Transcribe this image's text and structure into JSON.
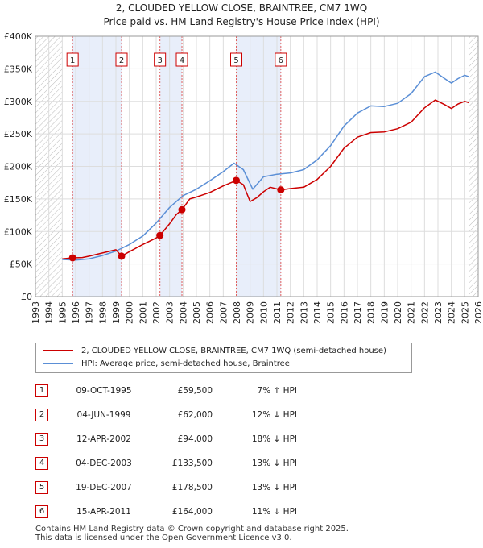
{
  "chart_data": {
    "type": "line",
    "title": "2, CLOUDED YELLOW CLOSE, BRAINTREE, CM7 1WQ",
    "subtitle": "Price paid vs. HM Land Registry's House Price Index (HPI)",
    "xlim": [
      1993,
      2026
    ],
    "ylim": [
      0,
      400000
    ],
    "x_ticks": [
      "1993",
      "1994",
      "1995",
      "1996",
      "1997",
      "1998",
      "1999",
      "2000",
      "2001",
      "2002",
      "2003",
      "2004",
      "2005",
      "2006",
      "2007",
      "2008",
      "2009",
      "2010",
      "2011",
      "2012",
      "2013",
      "2014",
      "2015",
      "2016",
      "2017",
      "2018",
      "2019",
      "2020",
      "2021",
      "2022",
      "2023",
      "2024",
      "2025",
      "2026"
    ],
    "y_ticks": [
      {
        "value": 0,
        "label": "£0"
      },
      {
        "value": 50000,
        "label": "£50K"
      },
      {
        "value": 100000,
        "label": "£100K"
      },
      {
        "value": 150000,
        "label": "£150K"
      },
      {
        "value": 200000,
        "label": "£200K"
      },
      {
        "value": 250000,
        "label": "£250K"
      },
      {
        "value": 300000,
        "label": "£300K"
      },
      {
        "value": 350000,
        "label": "£350K"
      },
      {
        "value": 400000,
        "label": "£400K"
      }
    ],
    "data_start": 1995.0,
    "data_end": 2025.3,
    "series": [
      {
        "name": "2, CLOUDED YELLOW CLOSE, BRAINTREE, CM7 1WQ (semi-detached house)",
        "color": "#cc0000",
        "points": [
          [
            1995.0,
            58000
          ],
          [
            1995.77,
            59500
          ],
          [
            1996.5,
            60000
          ],
          [
            1997.0,
            62000
          ],
          [
            1998.0,
            67000
          ],
          [
            1999.0,
            72000
          ],
          [
            1999.42,
            62000
          ],
          [
            2000.0,
            69000
          ],
          [
            2001.0,
            80000
          ],
          [
            2002.0,
            90000
          ],
          [
            2002.28,
            94000
          ],
          [
            2003.0,
            112000
          ],
          [
            2003.5,
            126000
          ],
          [
            2003.92,
            133500
          ],
          [
            2004.5,
            150000
          ],
          [
            2005.0,
            153000
          ],
          [
            2006.0,
            160000
          ],
          [
            2007.0,
            170000
          ],
          [
            2007.97,
            178500
          ],
          [
            2008.5,
            172000
          ],
          [
            2009.0,
            146000
          ],
          [
            2009.5,
            152000
          ],
          [
            2010.0,
            161000
          ],
          [
            2010.5,
            168000
          ],
          [
            2011.29,
            164000
          ],
          [
            2012.0,
            166000
          ],
          [
            2013.0,
            168000
          ],
          [
            2014.0,
            180000
          ],
          [
            2015.0,
            200000
          ],
          [
            2016.0,
            228000
          ],
          [
            2017.0,
            245000
          ],
          [
            2018.0,
            252000
          ],
          [
            2019.0,
            253000
          ],
          [
            2020.0,
            258000
          ],
          [
            2021.0,
            268000
          ],
          [
            2022.0,
            290000
          ],
          [
            2022.8,
            302000
          ],
          [
            2023.5,
            295000
          ],
          [
            2024.0,
            289000
          ],
          [
            2024.5,
            296000
          ],
          [
            2025.0,
            300000
          ],
          [
            2025.3,
            298000
          ]
        ]
      },
      {
        "name": "HPI: Average price, semi-detached house, Braintree",
        "color": "#5b8fd6",
        "points": [
          [
            1995.0,
            57000
          ],
          [
            1996.0,
            56000
          ],
          [
            1997.0,
            58000
          ],
          [
            1998.0,
            63000
          ],
          [
            1999.0,
            70000
          ],
          [
            2000.0,
            80000
          ],
          [
            2001.0,
            93000
          ],
          [
            2002.0,
            113000
          ],
          [
            2003.0,
            137000
          ],
          [
            2004.0,
            155000
          ],
          [
            2005.0,
            165000
          ],
          [
            2006.0,
            178000
          ],
          [
            2007.0,
            192000
          ],
          [
            2007.8,
            205000
          ],
          [
            2008.5,
            195000
          ],
          [
            2009.2,
            165000
          ],
          [
            2010.0,
            184000
          ],
          [
            2011.0,
            188000
          ],
          [
            2012.0,
            190000
          ],
          [
            2013.0,
            195000
          ],
          [
            2014.0,
            210000
          ],
          [
            2015.0,
            232000
          ],
          [
            2016.0,
            262000
          ],
          [
            2017.0,
            282000
          ],
          [
            2018.0,
            293000
          ],
          [
            2019.0,
            292000
          ],
          [
            2020.0,
            297000
          ],
          [
            2021.0,
            312000
          ],
          [
            2022.0,
            338000
          ],
          [
            2022.8,
            345000
          ],
          [
            2023.5,
            335000
          ],
          [
            2024.0,
            328000
          ],
          [
            2024.5,
            335000
          ],
          [
            2025.0,
            340000
          ],
          [
            2025.3,
            338000
          ]
        ]
      }
    ],
    "sales": [
      {
        "id": "1",
        "year": 1995.77,
        "value": 59500,
        "date": "09-OCT-1995",
        "price": "£59,500",
        "hpi": "7% ↑ HPI"
      },
      {
        "id": "2",
        "year": 1999.42,
        "value": 62000,
        "date": "04-JUN-1999",
        "price": "£62,000",
        "hpi": "12% ↓ HPI"
      },
      {
        "id": "3",
        "year": 2002.28,
        "value": 94000,
        "date": "12-APR-2002",
        "price": "£94,000",
        "hpi": "18% ↓ HPI"
      },
      {
        "id": "4",
        "year": 2003.92,
        "value": 133500,
        "date": "04-DEC-2003",
        "price": "£133,500",
        "hpi": "13% ↓ HPI"
      },
      {
        "id": "5",
        "year": 2007.97,
        "value": 178500,
        "date": "19-DEC-2007",
        "price": "£178,500",
        "hpi": "13% ↓ HPI"
      },
      {
        "id": "6",
        "year": 2011.29,
        "value": 164000,
        "date": "15-APR-2011",
        "price": "£164,000",
        "hpi": "11% ↓ HPI"
      }
    ],
    "shaded_pairs": [
      [
        0,
        1
      ],
      [
        2,
        3
      ],
      [
        4,
        5
      ]
    ],
    "colors": {
      "grid": "#dddddd",
      "shade": "#e8eefa",
      "hatch": "#bbbbbb",
      "vline": "#e06060"
    }
  },
  "legend": {
    "red_label": "2, CLOUDED YELLOW CLOSE, BRAINTREE, CM7 1WQ (semi-detached house)",
    "blue_label": "HPI: Average price, semi-detached house, Braintree"
  },
  "footer": {
    "line1": "Contains HM Land Registry data © Crown copyright and database right 2025.",
    "line2": "This data is licensed under the Open Government Licence v3.0."
  }
}
